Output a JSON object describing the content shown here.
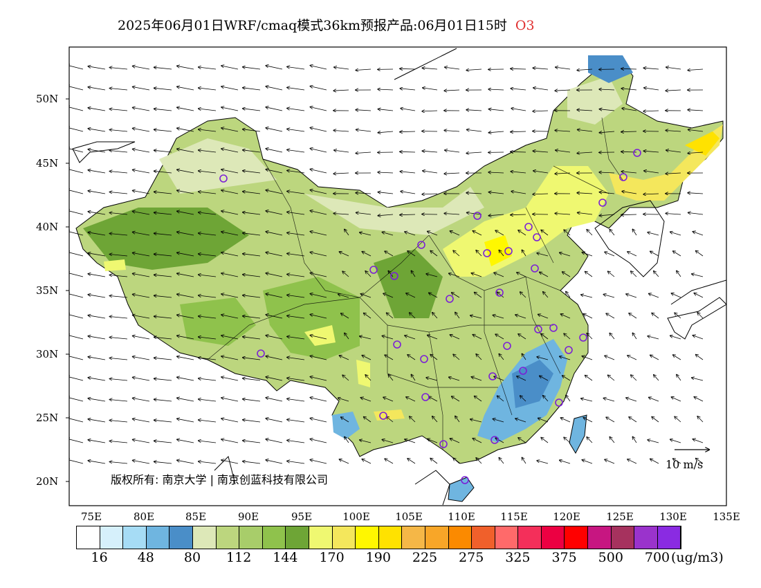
{
  "title": {
    "main": "2025年06月01日WRF/cmaq模式36km预报产品:06月01日15时",
    "pollutant": "O3",
    "pollutant_color": "#e03030"
  },
  "copyright": "版权所有: 南京大学 | 南京创蓝科技有限公司",
  "wind_scale_label": "10 m/s",
  "lat_labels": [
    "50N",
    "45N",
    "40N",
    "35N",
    "30N",
    "25N",
    "20N"
  ],
  "lon_labels": [
    "75E",
    "80E",
    "85E",
    "90E",
    "95E",
    "100E",
    "105E",
    "110E",
    "115E",
    "120E",
    "125E",
    "130E",
    "135E"
  ],
  "colorbar": {
    "colors": [
      "#ffffff",
      "#d6f0fb",
      "#a6dcf5",
      "#6fb5e0",
      "#4a8ec8",
      "#dde8b8",
      "#bcd67e",
      "#a8cd6a",
      "#8fc24c",
      "#6ea536",
      "#eff871",
      "#f4e75c",
      "#fff700",
      "#ffe200",
      "#f5b747",
      "#f8a628",
      "#fb8a00",
      "#f0602b",
      "#ff6a6a",
      "#f42f5a",
      "#ec0042",
      "#ff0000",
      "#c71681",
      "#a6325e",
      "#9a33cc",
      "#8a2be2"
    ],
    "labels": [
      "16",
      "48",
      "80",
      "112",
      "144",
      "170",
      "190",
      "225",
      "275",
      "325",
      "375",
      "500",
      "700"
    ],
    "unit": "(ug/m3)"
  },
  "monitoring_sites": 38
}
